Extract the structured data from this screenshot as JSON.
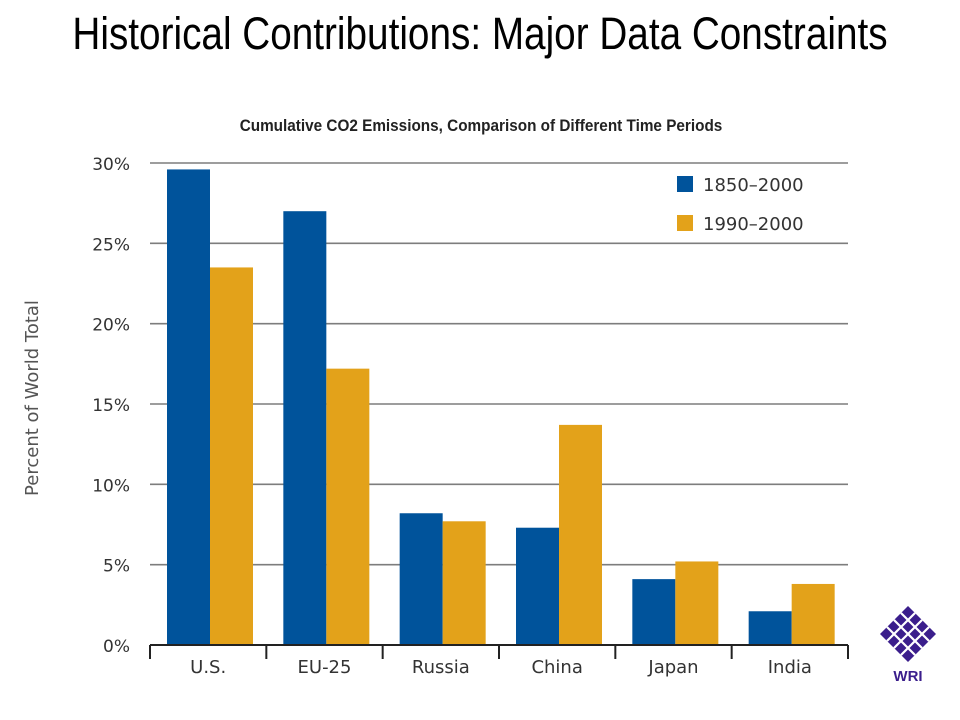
{
  "slide": {
    "title": "Historical Contributions: Major Data Constraints"
  },
  "logo": {
    "text": "WRI",
    "color": "#3b1e8c"
  },
  "chart_data": {
    "type": "bar",
    "title": "Cumulative CO2 Emissions, Comparison of Different Time Periods",
    "xlabel": "",
    "ylabel": "Percent of World Total",
    "ylim": [
      0,
      30
    ],
    "yticks": [
      "0%",
      "5%",
      "10%",
      "15%",
      "20%",
      "25%",
      "30%"
    ],
    "ytick_values": [
      0,
      5,
      10,
      15,
      20,
      25,
      30
    ],
    "grid": true,
    "legend_position": "top-right",
    "categories": [
      "U.S.",
      "EU-25",
      "Russia",
      "China",
      "Japan",
      "India"
    ],
    "series": [
      {
        "name": "1850–2000",
        "color": "#00539b",
        "values": [
          29.6,
          27.0,
          8.2,
          7.3,
          4.1,
          2.1
        ]
      },
      {
        "name": "1990–2000",
        "color": "#e3a21a",
        "values": [
          23.5,
          17.2,
          7.7,
          13.7,
          5.2,
          3.8
        ]
      }
    ]
  }
}
